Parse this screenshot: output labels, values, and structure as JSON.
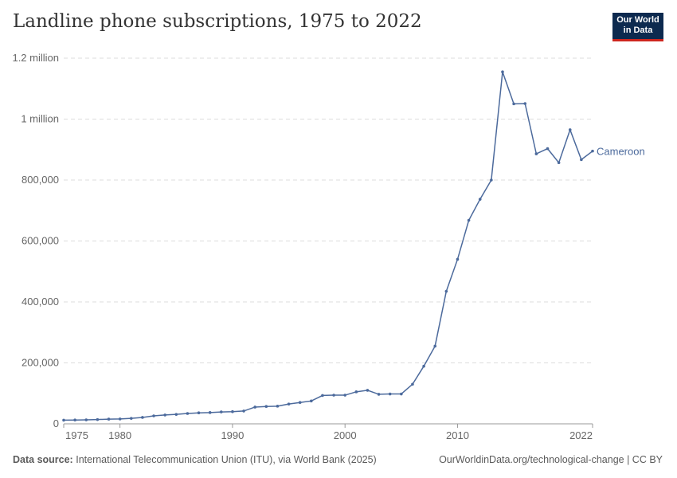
{
  "header": {
    "title": "Landline phone subscriptions, 1975 to 2022",
    "logo": "Our World in Data"
  },
  "footer": {
    "source_label": "Data source:",
    "source": "International Telecommunication Union (ITU), via World Bank (2025)",
    "link": "OurWorldinData.org/technological-change | CC BY"
  },
  "chart_data": {
    "type": "line",
    "title": "Landline phone subscriptions, 1975 to 2022",
    "xlim": [
      1975,
      2022
    ],
    "ylim": [
      0,
      1200000
    ],
    "grid": "horizontal dashed",
    "x_ticks": [
      1975,
      1980,
      1990,
      2000,
      2010,
      2022
    ],
    "y_ticks": [
      {
        "v": 0,
        "label": "0"
      },
      {
        "v": 200000,
        "label": "200,000"
      },
      {
        "v": 400000,
        "label": "400,000"
      },
      {
        "v": 600000,
        "label": "600,000"
      },
      {
        "v": 800000,
        "label": "800,000"
      },
      {
        "v": 1000000,
        "label": "1 million"
      },
      {
        "v": 1200000,
        "label": "1.2 million"
      }
    ],
    "color": "#4c6a9c",
    "series": [
      {
        "name": "Cameroon",
        "x": [
          1975,
          1976,
          1977,
          1978,
          1979,
          1980,
          1981,
          1982,
          1983,
          1984,
          1985,
          1986,
          1987,
          1988,
          1989,
          1990,
          1991,
          1992,
          1993,
          1994,
          1995,
          1996,
          1997,
          1998,
          1999,
          2000,
          2001,
          2002,
          2003,
          2004,
          2005,
          2006,
          2007,
          2008,
          2009,
          2010,
          2011,
          2012,
          2013,
          2014,
          2015,
          2016,
          2017,
          2018,
          2019,
          2020,
          2021,
          2022
        ],
        "values": [
          12000,
          12500,
          13000,
          14000,
          15500,
          16000,
          18000,
          21000,
          26000,
          29000,
          31000,
          34000,
          36000,
          37000,
          39000,
          40000,
          42000,
          55000,
          57000,
          58000,
          65000,
          70000,
          75000,
          93000,
          94000,
          94000,
          105000,
          110000,
          97000,
          98000,
          98000,
          130000,
          189000,
          255000,
          435000,
          540000,
          668000,
          737000,
          800000,
          1155000,
          1050000,
          1051000,
          886000,
          903000,
          857000,
          965000,
          867000,
          895000
        ]
      }
    ]
  }
}
